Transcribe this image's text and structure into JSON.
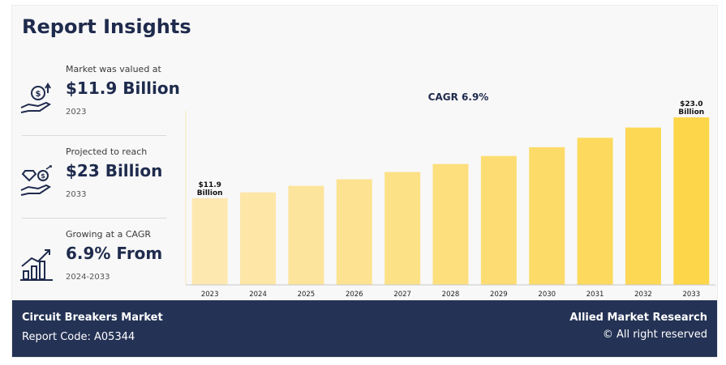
{
  "title": "Report Insights",
  "stats": [
    {
      "label": "Market was valued at",
      "value": "$11.9 Billion",
      "period": "2023",
      "icon": "money-hand-icon"
    },
    {
      "label": "Projected to reach",
      "value": "$23 Billion",
      "period": "2033",
      "icon": "diamond-coin-hand-icon"
    },
    {
      "label": "Growing at a CAGR",
      "value": "6.9% From",
      "period": "2024-2033",
      "icon": "growth-chart-icon"
    }
  ],
  "chart_data": {
    "type": "bar",
    "title": "CAGR 6.9%",
    "categories": [
      "2023",
      "2024",
      "2025",
      "2026",
      "2027",
      "2028",
      "2029",
      "2030",
      "2031",
      "2032",
      "2033"
    ],
    "values": [
      11.9,
      12.7,
      13.6,
      14.5,
      15.5,
      16.6,
      17.7,
      18.9,
      20.2,
      21.6,
      23.0
    ],
    "data_labels": [
      {
        "index": 0,
        "lines": [
          "$11.9",
          "Billion"
        ]
      },
      {
        "index": 10,
        "lines": [
          "$23.0",
          "Billion"
        ]
      }
    ],
    "ylim": [
      0,
      25
    ],
    "grid": false,
    "colors": [
      "#fde8b0",
      "#fdd64a"
    ]
  },
  "footer": {
    "market": "Circuit Breakers Market",
    "report_code": "Report Code: A05344",
    "brand": "Allied Market Research",
    "rights": "© All right reserved"
  }
}
